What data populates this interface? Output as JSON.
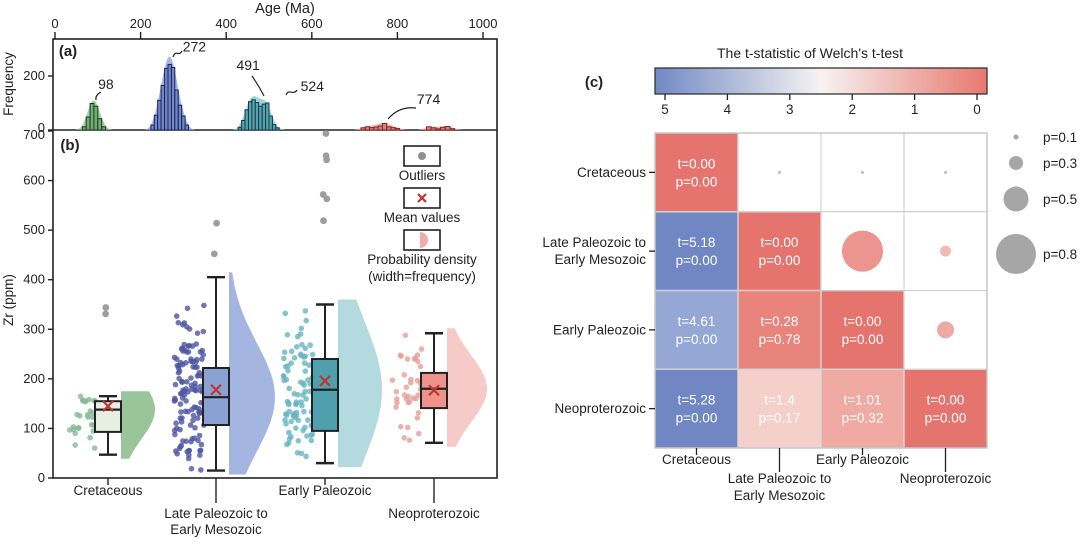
{
  "figure": {
    "panel_a_label": "(a)",
    "panel_b_label": "(b)",
    "panel_c_label": "(c)"
  },
  "chart_data": [
    {
      "id": "age-histogram",
      "type": "bar",
      "title": "Age (Ma)",
      "ylabel": "Frequency",
      "xlim": [
        0,
        1000
      ],
      "xticks": [
        0,
        200,
        400,
        600,
        800,
        1000
      ],
      "yticks": [
        0,
        200
      ],
      "grid": false,
      "annotations": [
        {
          "text": "98",
          "x": 98,
          "peak_h": 100
        },
        {
          "text": "272",
          "x": 272,
          "peak_h": 243
        },
        {
          "text": "491",
          "x": 491,
          "peak_h": 112
        },
        {
          "text": "524",
          "x": 524,
          "peak_h": 100
        },
        {
          "text": "774",
          "x": 770,
          "peak_h": 26
        }
      ],
      "series": [
        {
          "name": "Cretaceous",
          "bar_color": "#6fae72",
          "edge_color": "#1e3a24",
          "kde_color": "#8fc492",
          "segments": [
            {
              "start": 64,
              "bin_width": 9,
              "heights": [
                12,
                48,
                98,
                88,
                42,
                12
              ]
            }
          ]
        },
        {
          "name": "Late Paleozoic to Early Mesozoic",
          "bar_color": "#7386c6",
          "edge_color": "#17255c",
          "kde_color": "#94a6db",
          "segments": [
            {
              "start": 224,
              "bin_width": 8,
              "heights": [
                18,
                55,
                110,
                165,
                228,
                243,
                232,
                148,
                92,
                52,
                18
              ]
            }
          ]
        },
        {
          "name": "Early Paleozoic",
          "bar_color": "#58a5b2",
          "edge_color": "#123a42",
          "kde_color": "#86c8cf",
          "segments": [
            {
              "start": 428,
              "bin_width": 8,
              "heights": [
                10,
                35,
                75,
                105,
                112,
                102,
                88,
                96,
                100,
                52,
                20,
                8
              ]
            }
          ]
        },
        {
          "name": "Neoproterozoic",
          "bar_color": "#e28079",
          "edge_color": "#7a2a26",
          "kde_color": "#eda49d",
          "segments": [
            {
              "start": 715,
              "bin_width": 10,
              "heights": [
                8,
                12,
                9,
                11,
                15,
                24,
                12,
                9,
                6
              ]
            },
            {
              "start": 868,
              "bin_width": 11,
              "heights": [
                12,
                8,
                4,
                10,
                13,
                5
              ]
            }
          ]
        }
      ]
    },
    {
      "id": "zr-raincloud",
      "type": "raincloud-box",
      "ylabel": "Zr (ppm)",
      "ylim": [
        0,
        700
      ],
      "yticks": [
        0,
        100,
        200,
        300,
        400,
        500,
        600,
        700
      ],
      "legend": {
        "outliers_label": "Outliers",
        "mean_label": "Mean values",
        "density_label_line1": "Probability density",
        "density_label_line2": "(width=frequency)",
        "outlier_color": "#909090",
        "mean_color": "#c13530",
        "density_icon_color": "#f2aba5"
      },
      "groups": [
        {
          "label_lines": [
            "Cretaceous"
          ],
          "tick": "short",
          "scatter_color": "#86b996",
          "box_fill": "#e7efe2",
          "density_fill": "#8cbc8c",
          "box": {
            "whisker_low": 47,
            "q1": 93,
            "median": 138,
            "q3": 155,
            "whisker_high": 165,
            "mean": 145
          },
          "outliers": [
            331,
            344
          ],
          "points": {
            "n": 27,
            "min": 50,
            "max": 168,
            "mean": 118,
            "sd": 40
          }
        },
        {
          "label_lines": [
            "Late Paleozoic to",
            "Early Mesozoic"
          ],
          "tick": "long",
          "scatter_color": "#4d55a3",
          "box_fill": "#8aa2d3",
          "density_fill": "#98abde",
          "box": {
            "whisker_low": 15,
            "q1": 107,
            "median": 163,
            "q3": 222,
            "whisker_high": 405,
            "mean": 178
          },
          "outliers": [
            452,
            514
          ],
          "points": {
            "n": 125,
            "min": 15,
            "max": 403,
            "mean": 172,
            "sd": 80
          }
        },
        {
          "label_lines": [
            "Early Paleozoic"
          ],
          "tick": "short",
          "scatter_color": "#66b4c0",
          "box_fill": "#4f9fae",
          "density_fill": "#a9d6db",
          "box": {
            "whisker_low": 30,
            "q1": 95,
            "median": 178,
            "q3": 240,
            "whisker_high": 350,
            "mean": 196
          },
          "outliers": [
            519,
            563,
            572,
            642,
            650,
            695
          ],
          "points": {
            "n": 85,
            "min": 30,
            "max": 348,
            "mean": 170,
            "sd": 80
          }
        },
        {
          "label_lines": [
            "Neoproterozoic"
          ],
          "tick": "long",
          "scatter_color": "#e5a099",
          "box_fill": "#ee928b",
          "density_fill": "#f5c3be",
          "box": {
            "whisker_low": 71,
            "q1": 141,
            "median": 180,
            "q3": 212,
            "whisker_high": 292,
            "mean": 177
          },
          "outliers": [],
          "points": {
            "n": 38,
            "min": 72,
            "max": 290,
            "mean": 172,
            "sd": 55
          }
        }
      ]
    },
    {
      "id": "welch-matrix",
      "type": "heatmap",
      "title": "The t-statistic of Welch's t-test",
      "colorbar": {
        "ticks": [
          5,
          4,
          3,
          2,
          1,
          0
        ],
        "left_color": "#7189c4",
        "mid_color": "#f6f3f2",
        "right_color": "#e8786f"
      },
      "categories": [
        "Cretaceous",
        "Late Paleozoic to Early Mesozoic",
        "Early Paleozoic",
        "Neoproterozoic"
      ],
      "categories_multiline": [
        [
          "Cretaceous"
        ],
        [
          "Late Paleozoic to",
          "Early Mesozoic"
        ],
        [
          "Early Paleozoic"
        ],
        [
          "Neoproterozoic"
        ]
      ],
      "cells": [
        {
          "row": 0,
          "col": 0,
          "t": "t=0.00",
          "p": "p=0.00",
          "color": "#e4746d"
        },
        {
          "row": 1,
          "col": 0,
          "t": "t=5.18",
          "p": "p=0.00",
          "color": "#7187c3"
        },
        {
          "row": 1,
          "col": 1,
          "t": "t=0.00",
          "p": "p=0.00",
          "color": "#e4746d"
        },
        {
          "row": 2,
          "col": 0,
          "t": "t=4.61",
          "p": "p=0.00",
          "color": "#95a7d4"
        },
        {
          "row": 2,
          "col": 1,
          "t": "t=0.28",
          "p": "p=0.78",
          "color": "#e8847c"
        },
        {
          "row": 2,
          "col": 2,
          "t": "t=0.00",
          "p": "p=0.00",
          "color": "#e4746d"
        },
        {
          "row": 3,
          "col": 0,
          "t": "t=5.28",
          "p": "p=0.00",
          "color": "#7187c3"
        },
        {
          "row": 3,
          "col": 1,
          "t": "t=1.4",
          "p": "p=0.17",
          "color": "#f5d0cb"
        },
        {
          "row": 3,
          "col": 2,
          "t": "t=1.01",
          "p": "p=0.32",
          "color": "#eeaaa3"
        },
        {
          "row": 3,
          "col": 3,
          "t": "t=0.00",
          "p": "p=0.00",
          "color": "#e4746d"
        }
      ],
      "cell_text_color": "#ffffff",
      "bubbles": [
        {
          "row": 0,
          "col": 1,
          "p": 0.0,
          "r": 1.6,
          "color": "#c6c0bf"
        },
        {
          "row": 0,
          "col": 2,
          "p": 0.0,
          "r": 1.6,
          "color": "#c6c0bf"
        },
        {
          "row": 0,
          "col": 3,
          "p": 0.0,
          "r": 1.6,
          "color": "#c6c0bf"
        },
        {
          "row": 1,
          "col": 2,
          "p": 0.78,
          "r": 20.5,
          "color": "#eb958e"
        },
        {
          "row": 1,
          "col": 3,
          "p": 0.17,
          "r": 5.5,
          "color": "#f3bab4"
        },
        {
          "row": 2,
          "col": 3,
          "p": 0.32,
          "r": 8.5,
          "color": "#f0a9a2"
        }
      ],
      "size_legend": [
        {
          "label": "p=0.1",
          "r": 2.5
        },
        {
          "label": "p=0.3",
          "r": 7
        },
        {
          "label": "p=0.5",
          "r": 12.5
        },
        {
          "label": "p=0.8",
          "r": 20
        }
      ],
      "size_legend_color": "#a6a6a6"
    }
  ]
}
